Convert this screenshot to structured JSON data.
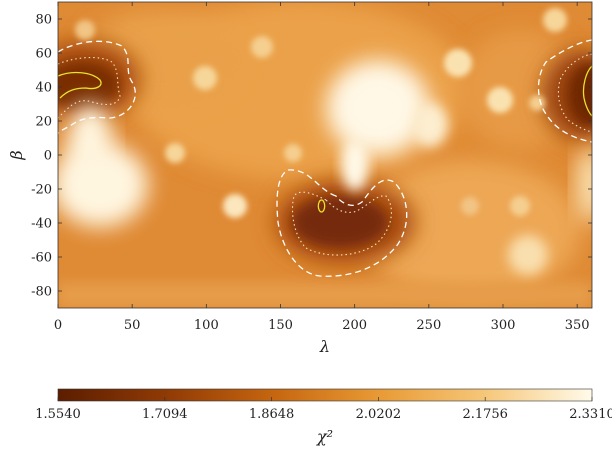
{
  "chart_data": {
    "type": "heatmap",
    "title": "",
    "xlabel": "λ",
    "ylabel": "β",
    "xlim": [
      0,
      360
    ],
    "ylim": [
      -90,
      90
    ],
    "xticks": [
      0,
      50,
      100,
      150,
      200,
      250,
      300,
      350
    ],
    "yticks": [
      -80,
      -60,
      -40,
      -20,
      0,
      20,
      40,
      60,
      80
    ],
    "colorbar": {
      "label": "χ²",
      "min": 1.554,
      "max": 2.331,
      "ticks": [
        "1.5540",
        "1.7094",
        "1.8648",
        "2.0202",
        "2.1756",
        "2.3310"
      ]
    },
    "colormap": [
      "#5c1d00",
      "#8f3a05",
      "#c5650f",
      "#e89a35",
      "#f6c779",
      "#fffbeb"
    ],
    "minima": [
      {
        "name": "minimum near (20, 40)",
        "lambda": 20,
        "beta": 42,
        "value": 1.56
      },
      {
        "name": "minimum near (180, -35)",
        "lambda": 180,
        "beta": -32,
        "value": 1.57
      },
      {
        "name": "minimum near (355, 35)",
        "lambda": 355,
        "beta": 35,
        "value": 1.57
      }
    ],
    "maxima": [
      {
        "lambda": 30,
        "beta": -20,
        "value": 2.33
      },
      {
        "lambda": 215,
        "beta": 30,
        "value": 2.33
      }
    ],
    "contours": [
      "dashed white",
      "dotted white",
      "solid yellow"
    ]
  }
}
